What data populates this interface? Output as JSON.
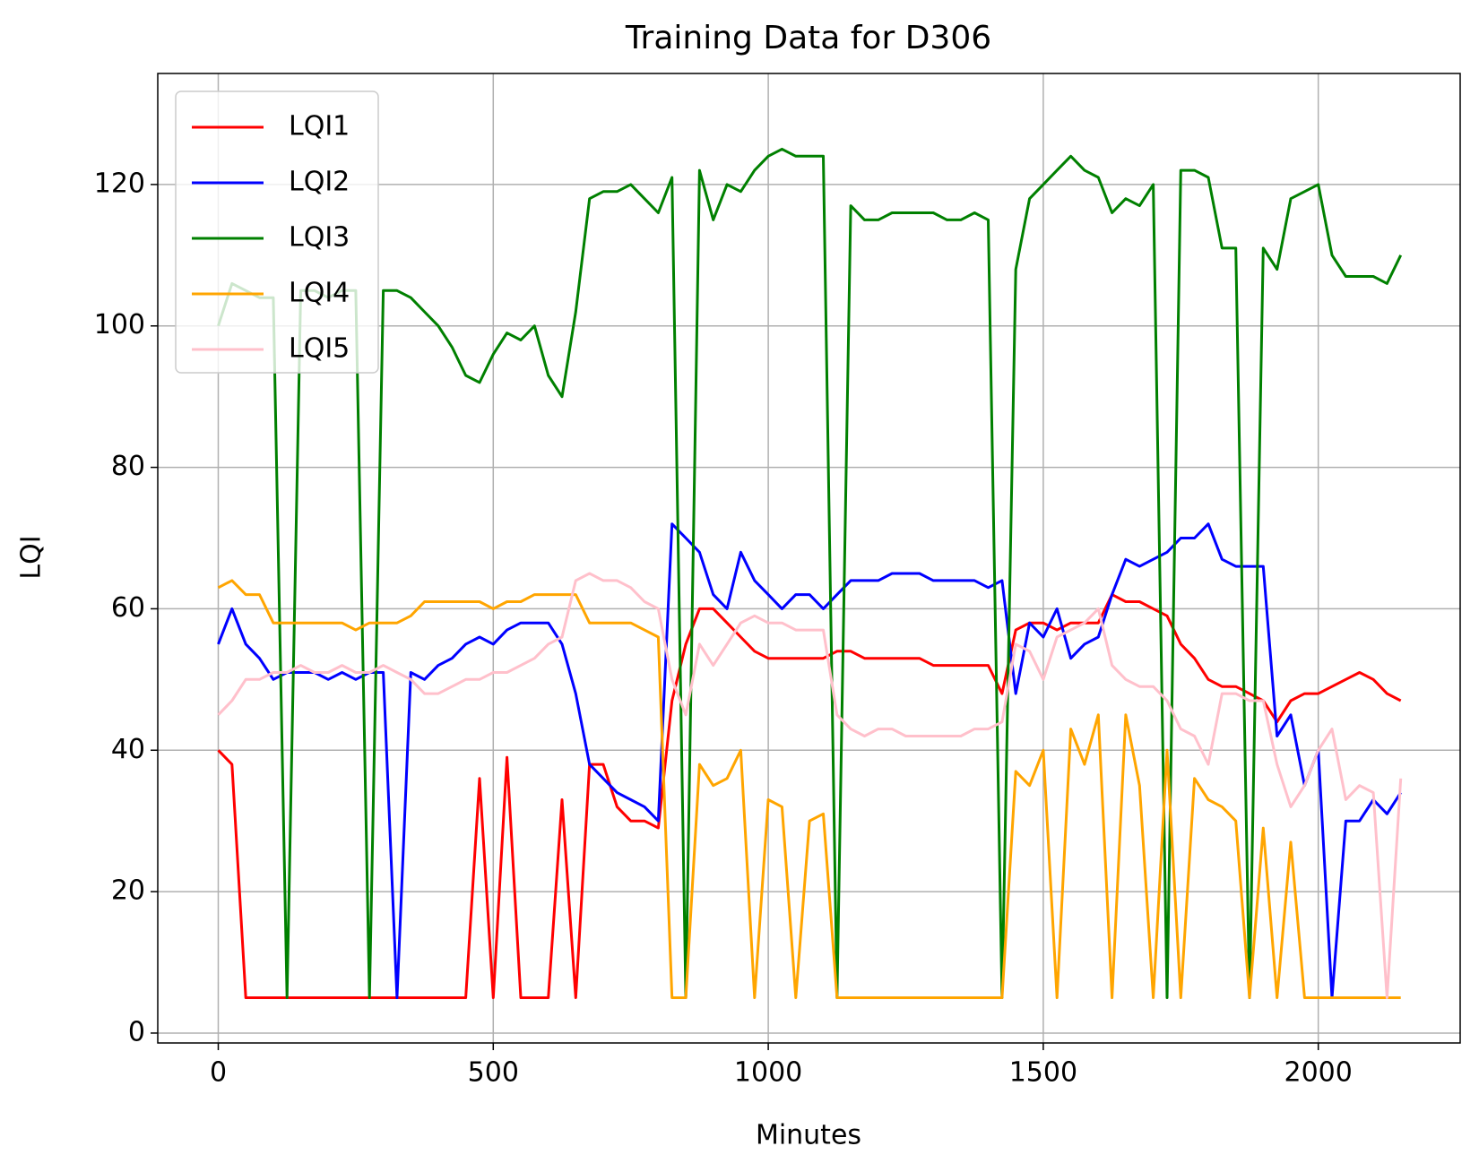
{
  "chart_data": {
    "type": "line",
    "title": "Training Data for D306",
    "x_label": "Minutes",
    "y_label": "LQI",
    "x": [
      0,
      25,
      50,
      75,
      100,
      125,
      150,
      175,
      200,
      225,
      250,
      275,
      300,
      325,
      350,
      375,
      400,
      425,
      450,
      475,
      500,
      525,
      550,
      575,
      600,
      625,
      650,
      675,
      700,
      725,
      750,
      775,
      800,
      825,
      850,
      875,
      900,
      925,
      950,
      975,
      1000,
      1025,
      1050,
      1075,
      1100,
      1125,
      1150,
      1175,
      1200,
      1225,
      1250,
      1275,
      1300,
      1325,
      1350,
      1375,
      1400,
      1425,
      1450,
      1475,
      1500,
      1525,
      1550,
      1575,
      1600,
      1625,
      1650,
      1675,
      1700,
      1725,
      1750,
      1775,
      1800,
      1825,
      1850,
      1875,
      1900,
      1925,
      1950,
      1975,
      2000,
      2025,
      2050,
      2075,
      2100,
      2125,
      2150
    ],
    "series": [
      {
        "name": "LQI1",
        "color": "#ff0000",
        "values": [
          40,
          38,
          5,
          5,
          5,
          5,
          5,
          5,
          5,
          5,
          5,
          5,
          5,
          5,
          5,
          5,
          5,
          5,
          5,
          36,
          5,
          39,
          5,
          5,
          5,
          33,
          5,
          38,
          38,
          32,
          30,
          30,
          29,
          47,
          55,
          60,
          60,
          58,
          56,
          54,
          53,
          53,
          53,
          53,
          53,
          54,
          54,
          53,
          53,
          53,
          53,
          53,
          52,
          52,
          52,
          52,
          52,
          48,
          57,
          58,
          58,
          57,
          58,
          58,
          58,
          62,
          61,
          61,
          60,
          59,
          55,
          53,
          50,
          49,
          49,
          48,
          47,
          44,
          47,
          48,
          48,
          49,
          50,
          51,
          50,
          48,
          47
        ]
      },
      {
        "name": "LQI2",
        "color": "#0000ff",
        "values": [
          55,
          60,
          55,
          53,
          50,
          51,
          51,
          51,
          50,
          51,
          50,
          51,
          51,
          5,
          51,
          50,
          52,
          53,
          55,
          56,
          55,
          57,
          58,
          58,
          58,
          55,
          48,
          38,
          36,
          34,
          33,
          32,
          30,
          72,
          70,
          68,
          62,
          60,
          68,
          64,
          62,
          60,
          62,
          62,
          60,
          62,
          64,
          64,
          64,
          65,
          65,
          65,
          64,
          64,
          64,
          64,
          63,
          64,
          48,
          58,
          56,
          60,
          53,
          55,
          56,
          62,
          67,
          66,
          67,
          68,
          70,
          70,
          72,
          67,
          66,
          66,
          66,
          42,
          45,
          35,
          40,
          5,
          30,
          30,
          33,
          31,
          34
        ]
      },
      {
        "name": "LQI3",
        "color": "#008000",
        "values": [
          100,
          106,
          105,
          104,
          104,
          5,
          105,
          105,
          104,
          105,
          105,
          5,
          105,
          105,
          104,
          102,
          100,
          97,
          93,
          92,
          96,
          99,
          98,
          100,
          93,
          90,
          102,
          118,
          119,
          119,
          120,
          118,
          116,
          121,
          5,
          122,
          115,
          120,
          119,
          122,
          124,
          125,
          124,
          124,
          124,
          5,
          117,
          115,
          115,
          116,
          116,
          116,
          116,
          115,
          115,
          116,
          115,
          5,
          108,
          118,
          120,
          122,
          124,
          122,
          121,
          116,
          118,
          117,
          120,
          5,
          122,
          122,
          121,
          111,
          111,
          5,
          111,
          108,
          118,
          119,
          120,
          110,
          107,
          107,
          107,
          106,
          110
        ]
      },
      {
        "name": "LQI4",
        "color": "#ffa500",
        "values": [
          63,
          64,
          62,
          62,
          58,
          58,
          58,
          58,
          58,
          58,
          57,
          58,
          58,
          58,
          59,
          61,
          61,
          61,
          61,
          61,
          60,
          61,
          61,
          62,
          62,
          62,
          62,
          58,
          58,
          58,
          58,
          57,
          56,
          5,
          5,
          38,
          35,
          36,
          40,
          5,
          33,
          32,
          5,
          30,
          31,
          5,
          5,
          5,
          5,
          5,
          5,
          5,
          5,
          5,
          5,
          5,
          5,
          5,
          37,
          35,
          40,
          5,
          43,
          38,
          45,
          5,
          45,
          35,
          5,
          40,
          5,
          36,
          33,
          32,
          30,
          5,
          29,
          5,
          27,
          5,
          5,
          5,
          5,
          5,
          5,
          5,
          5
        ]
      },
      {
        "name": "LQI5",
        "color": "#ffc0cb",
        "values": [
          45,
          47,
          50,
          50,
          51,
          51,
          52,
          51,
          51,
          52,
          51,
          51,
          52,
          51,
          50,
          48,
          48,
          49,
          50,
          50,
          51,
          51,
          52,
          53,
          55,
          56,
          64,
          65,
          64,
          64,
          63,
          61,
          60,
          50,
          45,
          55,
          52,
          55,
          58,
          59,
          58,
          58,
          57,
          57,
          57,
          45,
          43,
          42,
          43,
          43,
          42,
          42,
          42,
          42,
          42,
          43,
          43,
          44,
          55,
          54,
          50,
          56,
          57,
          58,
          60,
          52,
          50,
          49,
          49,
          47,
          43,
          42,
          38,
          48,
          48,
          47,
          47,
          38,
          32,
          35,
          40,
          43,
          33,
          35,
          34,
          5,
          36
        ]
      }
    ],
    "xlim": [
      -110,
      2258
    ],
    "ylim": [
      -1.4,
      135.7
    ],
    "xticks": [
      0,
      500,
      1000,
      1500,
      2000
    ],
    "yticks": [
      0,
      20,
      40,
      60,
      80,
      100,
      120
    ],
    "grid": true,
    "legend": "upper left"
  }
}
